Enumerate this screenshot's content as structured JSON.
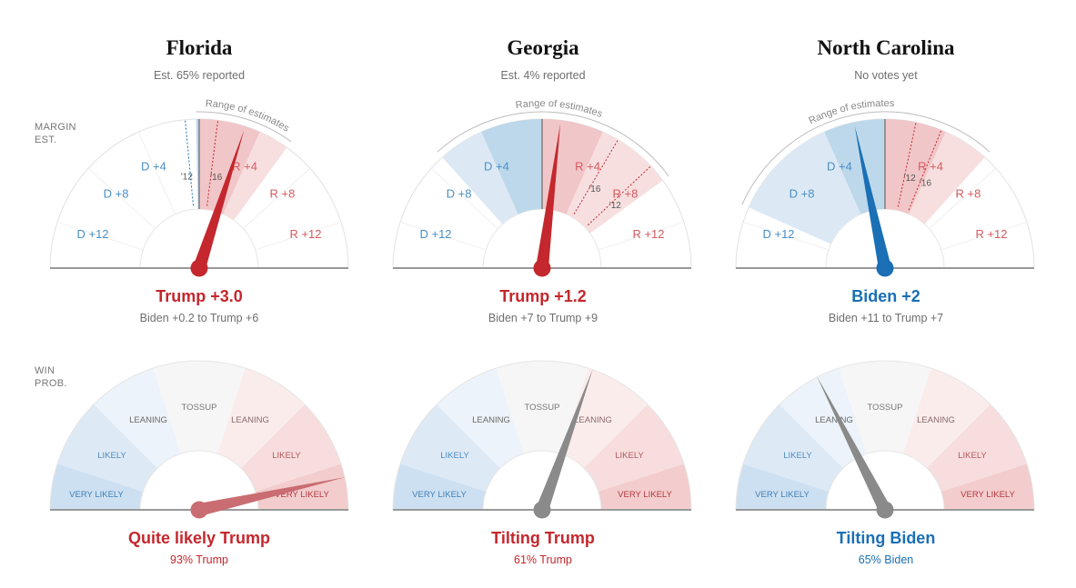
{
  "row_labels": {
    "margin_line1": "MARGIN",
    "margin_line2": "EST.",
    "win_line1": "WIN",
    "win_line2": "PROB."
  },
  "colors": {
    "dem": "#1a6fb5",
    "rep": "#c4272d",
    "needle_neutral": "#8a8a8a",
    "rep_light_needle": "#c96d72"
  },
  "margin_scale": {
    "labels_dem": [
      "D +12",
      "D +8",
      "D +4"
    ],
    "labels_rep": [
      "R +4",
      "R +8",
      "R +12"
    ],
    "range_label": "Range of estimates"
  },
  "prob_scale": {
    "bands": [
      "VERY LIKELY",
      "LIKELY",
      "LEANING",
      "TOSSUP",
      "LEANING",
      "LIKELY",
      "VERY LIKELY"
    ]
  },
  "states": [
    {
      "name": "Florida",
      "reported": "Est. 65% reported",
      "leader_text": "Trump +3.0",
      "leader_party": "rep",
      "range_text": "Biden +0.2 to Trump +6",
      "status_text": "Quite likely Trump",
      "prob_text": "93% Trump"
    },
    {
      "name": "Georgia",
      "reported": "Est. 4% reported",
      "leader_text": "Trump +1.2",
      "leader_party": "rep",
      "range_text": "Biden +7 to Trump +9",
      "status_text": "Tilting Trump",
      "prob_text": "61% Trump"
    },
    {
      "name": "North Carolina",
      "reported": "No votes yet",
      "leader_text": "Biden +2",
      "leader_party": "dem",
      "range_text": "Biden +11 to Trump +7",
      "status_text": "Tilting Biden",
      "prob_text": "65% Biden"
    }
  ],
  "chart_data": [
    {
      "type": "gauge",
      "title": "Florida",
      "margin": {
        "estimate": 3.0,
        "range": [
          -0.2,
          6
        ],
        "past_results": [
          {
            "label": "'12",
            "value": -0.9
          },
          {
            "label": "'16",
            "value": 1.2
          }
        ]
      },
      "win_probability": {
        "value": 93,
        "party": "Trump"
      }
    },
    {
      "type": "gauge",
      "title": "Georgia",
      "margin": {
        "estimate": 1.2,
        "range": [
          -7,
          9
        ],
        "past_results": [
          {
            "label": "'16",
            "value": 5.1
          },
          {
            "label": "'12",
            "value": 7.8
          }
        ]
      },
      "win_probability": {
        "value": 61,
        "party": "Trump"
      }
    },
    {
      "type": "gauge",
      "title": "North Carolina",
      "margin": {
        "estimate": -2,
        "range": [
          -11,
          7
        ],
        "past_results": [
          {
            "label": "'12",
            "value": 2.0
          },
          {
            "label": "'16",
            "value": 3.7
          }
        ]
      },
      "win_probability": {
        "value": 65,
        "party": "Biden"
      }
    }
  ]
}
